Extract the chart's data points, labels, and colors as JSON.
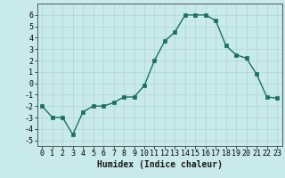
{
  "x": [
    0,
    1,
    2,
    3,
    4,
    5,
    6,
    7,
    8,
    9,
    10,
    11,
    12,
    13,
    14,
    15,
    16,
    17,
    18,
    19,
    20,
    21,
    22,
    23
  ],
  "y": [
    -2,
    -3,
    -3,
    -4.5,
    -2.5,
    -2,
    -2,
    -1.7,
    -1.2,
    -1.2,
    -0.2,
    2.0,
    3.7,
    4.5,
    6.0,
    6.0,
    6.0,
    5.5,
    3.3,
    2.5,
    2.2,
    0.8,
    -1.2,
    -1.3
  ],
  "line_color": "#1a7060",
  "marker_color": "#1a7060",
  "bg_color": "#c8eaea",
  "grid_color": "#b0d4d4",
  "xlabel": "Humidex (Indice chaleur)",
  "xlim": [
    -0.5,
    23.5
  ],
  "ylim": [
    -5.5,
    7.0
  ],
  "yticks": [
    -5,
    -4,
    -3,
    -2,
    -1,
    0,
    1,
    2,
    3,
    4,
    5,
    6
  ],
  "xticks": [
    0,
    1,
    2,
    3,
    4,
    5,
    6,
    7,
    8,
    9,
    10,
    11,
    12,
    13,
    14,
    15,
    16,
    17,
    18,
    19,
    20,
    21,
    22,
    23
  ],
  "xlabel_fontsize": 7,
  "tick_fontsize": 6,
  "line_width": 1.0,
  "marker_size": 2.5
}
